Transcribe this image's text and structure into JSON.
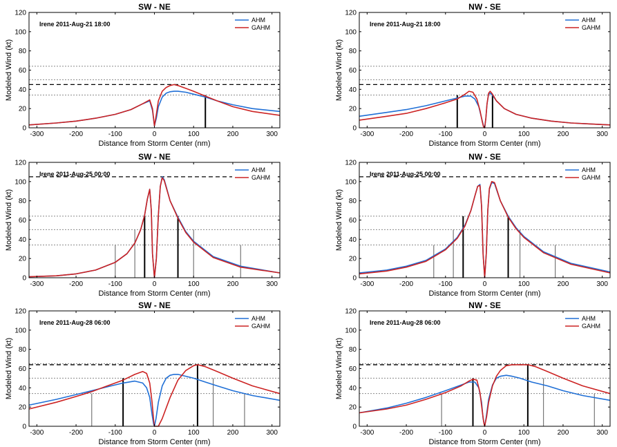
{
  "colors": {
    "AHM": "#1f6fd6",
    "GAHM": "#cc2222"
  },
  "chart_data": [
    {
      "type": "line",
      "title": "SW - NE",
      "annotation": "Irene  2011-Aug-21 18:00",
      "xlabel": "Distance from Storm Center (nm)",
      "ylabel": "Modeled Wind (kt)",
      "xlim": [
        -320,
        320
      ],
      "ylim": [
        0,
        120
      ],
      "xticks": [
        "-300",
        "-200",
        "-100",
        "0",
        "100",
        "200",
        "300"
      ],
      "yticks": [
        "0",
        "20",
        "40",
        "60",
        "80",
        "100",
        "120"
      ],
      "legend": {
        "position": "top-right",
        "entries": [
          "AHM",
          "GAHM"
        ]
      },
      "threshold_lines": {
        "dashed": [
          45
        ],
        "dotted": [
          34,
          50,
          64
        ]
      },
      "radii_markers": [
        {
          "x": 130,
          "height": 34,
          "weight": "bold"
        }
      ],
      "series": [
        {
          "name": "AHM",
          "x": [
            -320,
            -250,
            -200,
            -150,
            -100,
            -60,
            -30,
            -12,
            -5,
            0,
            5,
            10,
            20,
            30,
            40,
            50,
            60,
            80,
            100,
            130,
            160,
            200,
            250,
            320
          ],
          "y": [
            3,
            5,
            7,
            10,
            14,
            19,
            25,
            28,
            18,
            2,
            10,
            22,
            32,
            36,
            37.5,
            38,
            38,
            37,
            35,
            32,
            28,
            24,
            20,
            17
          ]
        },
        {
          "name": "GAHM",
          "x": [
            -320,
            -250,
            -200,
            -150,
            -100,
            -60,
            -30,
            -12,
            -5,
            0,
            5,
            10,
            20,
            30,
            40,
            50,
            60,
            80,
            100,
            130,
            160,
            200,
            250,
            320
          ],
          "y": [
            3,
            5,
            7,
            10,
            14,
            19,
            25,
            29,
            20,
            2,
            14,
            28,
            38,
            42,
            44,
            45,
            44,
            41,
            38,
            33,
            28,
            22,
            17,
            13
          ]
        }
      ]
    },
    {
      "type": "line",
      "title": "NW - SE",
      "annotation": "Irene  2011-Aug-21 18:00",
      "xlabel": "Distance from Storm Center (nm)",
      "ylabel": "Modeled Wind (kt)",
      "xlim": [
        -320,
        320
      ],
      "ylim": [
        0,
        120
      ],
      "xticks": [
        "-300",
        "-200",
        "-100",
        "0",
        "100",
        "200",
        "300"
      ],
      "yticks": [
        "0",
        "20",
        "40",
        "60",
        "80",
        "100",
        "120"
      ],
      "legend": {
        "position": "top-right",
        "entries": [
          "AHM",
          "GAHM"
        ]
      },
      "threshold_lines": {
        "dashed": [
          45
        ],
        "dotted": [
          34,
          50,
          64
        ]
      },
      "radii_markers": [
        {
          "x": -70,
          "height": 34,
          "weight": "bold"
        },
        {
          "x": 20,
          "height": 34,
          "weight": "bold"
        }
      ],
      "series": [
        {
          "name": "AHM",
          "x": [
            -320,
            -250,
            -200,
            -150,
            -100,
            -70,
            -50,
            -35,
            -25,
            -15,
            -8,
            -3,
            0,
            3,
            6,
            10,
            14,
            20,
            30,
            50,
            80,
            120,
            170,
            220,
            270,
            320
          ],
          "y": [
            12,
            16,
            19,
            23,
            28,
            31,
            33,
            33,
            30,
            22,
            10,
            2,
            0,
            10,
            25,
            35,
            36,
            34,
            28,
            20,
            14,
            10,
            7,
            5,
            4,
            3
          ]
        },
        {
          "name": "GAHM",
          "x": [
            -320,
            -250,
            -200,
            -150,
            -100,
            -70,
            -50,
            -40,
            -30,
            -20,
            -12,
            -6,
            -3,
            0,
            3,
            6,
            10,
            14,
            20,
            30,
            50,
            80,
            120,
            170,
            220,
            270,
            320
          ],
          "y": [
            8,
            12,
            15,
            20,
            26,
            30,
            35,
            38,
            37,
            30,
            18,
            6,
            1,
            0,
            10,
            25,
            36,
            38,
            35,
            28,
            20,
            14,
            10,
            7,
            5,
            4,
            3
          ]
        }
      ]
    },
    {
      "type": "line",
      "title": "SW - NE",
      "annotation": "Irene  2011-Aug-25 00:00",
      "xlabel": "Distance from Storm Center (nm)",
      "ylabel": "Modeled Wind (kt)",
      "xlim": [
        -320,
        320
      ],
      "ylim": [
        0,
        120
      ],
      "xticks": [
        "-300",
        "-200",
        "-100",
        "0",
        "100",
        "200",
        "300"
      ],
      "yticks": [
        "0",
        "20",
        "40",
        "60",
        "80",
        "100",
        "120"
      ],
      "legend": {
        "position": "top-right",
        "entries": [
          "AHM",
          "GAHM"
        ]
      },
      "threshold_lines": {
        "dashed": [
          105
        ],
        "dotted": [
          34,
          50,
          64
        ]
      },
      "radii_markers": [
        {
          "x": -100,
          "height": 34,
          "weight": "thin"
        },
        {
          "x": -50,
          "height": 50,
          "weight": "thin"
        },
        {
          "x": -25,
          "height": 64,
          "weight": "bold"
        },
        {
          "x": 60,
          "height": 64,
          "weight": "bold"
        },
        {
          "x": 100,
          "height": 50,
          "weight": "thin"
        },
        {
          "x": 220,
          "height": 34,
          "weight": "thin"
        }
      ],
      "series": [
        {
          "name": "AHM",
          "x": [
            -320,
            -250,
            -200,
            -150,
            -100,
            -70,
            -50,
            -35,
            -25,
            -18,
            -12,
            -8,
            -5,
            0,
            5,
            10,
            15,
            20,
            25,
            30,
            40,
            60,
            80,
            100,
            150,
            220,
            320
          ],
          "y": [
            1,
            2,
            4,
            8,
            16,
            25,
            36,
            50,
            65,
            82,
            92,
            70,
            25,
            0,
            20,
            65,
            95,
            105,
            102,
            95,
            80,
            63,
            48,
            38,
            22,
            12,
            5
          ]
        },
        {
          "name": "GAHM",
          "x": [
            -320,
            -250,
            -200,
            -150,
            -100,
            -70,
            -50,
            -35,
            -25,
            -18,
            -12,
            -8,
            -5,
            0,
            5,
            10,
            15,
            20,
            25,
            30,
            40,
            60,
            80,
            100,
            150,
            220,
            320
          ],
          "y": [
            1,
            2,
            4,
            8,
            16,
            25,
            36,
            50,
            65,
            82,
            92,
            70,
            25,
            0,
            20,
            65,
            95,
            104,
            101,
            94,
            80,
            62,
            47,
            37,
            21,
            11,
            5
          ]
        }
      ]
    },
    {
      "type": "line",
      "title": "NW - SE",
      "annotation": "Irene  2011-Aug-25 00:00",
      "xlabel": "Distance from Storm Center (nm)",
      "ylabel": "Modeled Wind (kt)",
      "xlim": [
        -320,
        320
      ],
      "ylim": [
        0,
        120
      ],
      "xticks": [
        "-300",
        "-200",
        "-100",
        "0",
        "100",
        "200",
        "300"
      ],
      "yticks": [
        "0",
        "20",
        "40",
        "60",
        "80",
        "100",
        "120"
      ],
      "legend": {
        "position": "top-right",
        "entries": [
          "AHM",
          "GAHM"
        ]
      },
      "threshold_lines": {
        "dashed": [
          105
        ],
        "dotted": [
          34,
          50,
          64
        ]
      },
      "radii_markers": [
        {
          "x": -130,
          "height": 34,
          "weight": "thin"
        },
        {
          "x": -80,
          "height": 50,
          "weight": "thin"
        },
        {
          "x": -55,
          "height": 64,
          "weight": "bold"
        },
        {
          "x": 60,
          "height": 64,
          "weight": "bold"
        },
        {
          "x": 90,
          "height": 50,
          "weight": "thin"
        },
        {
          "x": 180,
          "height": 34,
          "weight": "thin"
        }
      ],
      "series": [
        {
          "name": "AHM",
          "x": [
            -320,
            -250,
            -200,
            -150,
            -100,
            -70,
            -50,
            -35,
            -25,
            -18,
            -12,
            -8,
            -4,
            0,
            4,
            8,
            12,
            18,
            25,
            30,
            40,
            60,
            80,
            100,
            150,
            220,
            320
          ],
          "y": [
            5,
            8,
            12,
            18,
            30,
            42,
            55,
            70,
            85,
            95,
            97,
            75,
            25,
            0,
            25,
            70,
            92,
            99,
            98,
            92,
            80,
            64,
            52,
            43,
            27,
            15,
            6
          ]
        },
        {
          "name": "GAHM",
          "x": [
            -320,
            -250,
            -200,
            -150,
            -100,
            -70,
            -50,
            -35,
            -25,
            -18,
            -12,
            -8,
            -4,
            0,
            4,
            8,
            12,
            18,
            25,
            30,
            40,
            60,
            80,
            100,
            150,
            220,
            320
          ],
          "y": [
            4,
            7,
            11,
            17,
            29,
            41,
            54,
            70,
            85,
            95,
            96,
            74,
            24,
            0,
            25,
            70,
            93,
            100,
            99,
            93,
            80,
            63,
            51,
            42,
            26,
            14,
            5
          ]
        }
      ]
    },
    {
      "type": "line",
      "title": "SW - NE",
      "annotation": "Irene  2011-Aug-28 06:00",
      "xlabel": "Distance from Storm Center (nm)",
      "ylabel": "Modeled Wind (kt)",
      "xlim": [
        -320,
        320
      ],
      "ylim": [
        0,
        120
      ],
      "xticks": [
        "-300",
        "-200",
        "-100",
        "0",
        "100",
        "200",
        "300"
      ],
      "yticks": [
        "0",
        "20",
        "40",
        "60",
        "80",
        "100",
        "120"
      ],
      "legend": {
        "position": "top-right",
        "entries": [
          "AHM",
          "GAHM"
        ]
      },
      "threshold_lines": {
        "dashed": [
          64
        ],
        "dotted": [
          34,
          50,
          65
        ]
      },
      "radii_markers": [
        {
          "x": -160,
          "height": 34,
          "weight": "thin"
        },
        {
          "x": -80,
          "height": 50,
          "weight": "bold"
        },
        {
          "x": 110,
          "height": 64,
          "weight": "bold"
        },
        {
          "x": 150,
          "height": 50,
          "weight": "thin"
        },
        {
          "x": 230,
          "height": 34,
          "weight": "thin"
        }
      ],
      "series": [
        {
          "name": "AHM",
          "x": [
            -320,
            -250,
            -200,
            -160,
            -120,
            -80,
            -50,
            -30,
            -20,
            -12,
            -6,
            -2,
            0,
            4,
            10,
            20,
            30,
            40,
            50,
            60,
            80,
            100,
            130,
            160,
            200,
            250,
            320
          ],
          "y": [
            22,
            28,
            33,
            37,
            41,
            45,
            47,
            45,
            40,
            30,
            12,
            2,
            0,
            8,
            25,
            42,
            50,
            53,
            54,
            54,
            52,
            50,
            46,
            42,
            37,
            32,
            27
          ]
        },
        {
          "name": "GAHM",
          "x": [
            -320,
            -250,
            -200,
            -160,
            -120,
            -80,
            -50,
            -30,
            -20,
            -12,
            -6,
            -2,
            0,
            4,
            10,
            20,
            40,
            60,
            80,
            100,
            110,
            130,
            160,
            200,
            250,
            320
          ],
          "y": [
            18,
            25,
            31,
            36,
            42,
            48,
            54,
            57,
            55,
            45,
            25,
            6,
            0,
            0,
            0,
            8,
            30,
            48,
            58,
            63,
            64,
            62,
            57,
            50,
            42,
            34
          ]
        }
      ]
    },
    {
      "type": "line",
      "title": "NW - SE",
      "annotation": "Irene  2011-Aug-28 06:00",
      "xlabel": "Distance from Storm Center (nm)",
      "ylabel": "Modeled Wind (kt)",
      "xlim": [
        -320,
        320
      ],
      "ylim": [
        0,
        120
      ],
      "xticks": [
        "-300",
        "-200",
        "-100",
        "0",
        "100",
        "200",
        "300"
      ],
      "yticks": [
        "0",
        "20",
        "40",
        "60",
        "80",
        "100",
        "120"
      ],
      "legend": {
        "position": "top-right",
        "entries": [
          "AHM",
          "GAHM"
        ]
      },
      "threshold_lines": {
        "dashed": [
          64
        ],
        "dotted": [
          34,
          50,
          65
        ]
      },
      "radii_markers": [
        {
          "x": -110,
          "height": 34,
          "weight": "thin"
        },
        {
          "x": -30,
          "height": 50,
          "weight": "bold"
        },
        {
          "x": 110,
          "height": 64,
          "weight": "bold"
        },
        {
          "x": 150,
          "height": 50,
          "weight": "thin"
        },
        {
          "x": 280,
          "height": 34,
          "weight": "thin"
        }
      ],
      "series": [
        {
          "name": "AHM",
          "x": [
            -320,
            -250,
            -200,
            -150,
            -100,
            -60,
            -40,
            -25,
            -15,
            -8,
            -4,
            0,
            4,
            10,
            20,
            30,
            40,
            55,
            70,
            90,
            120,
            160,
            200,
            250,
            320
          ],
          "y": [
            14,
            19,
            24,
            30,
            37,
            43,
            46,
            46,
            40,
            25,
            8,
            0,
            10,
            28,
            43,
            50,
            52,
            53,
            52,
            50,
            46,
            42,
            37,
            32,
            27
          ]
        },
        {
          "name": "GAHM",
          "x": [
            -320,
            -250,
            -200,
            -150,
            -100,
            -60,
            -40,
            -30,
            -20,
            -12,
            -6,
            -2,
            0,
            5,
            10,
            20,
            30,
            40,
            55,
            70,
            90,
            110,
            130,
            160,
            200,
            250,
            320
          ],
          "y": [
            14,
            18,
            22,
            28,
            35,
            42,
            47,
            49,
            48,
            35,
            15,
            3,
            0,
            10,
            25,
            42,
            52,
            58,
            63,
            64,
            64,
            64,
            62,
            57,
            50,
            42,
            34
          ]
        }
      ]
    }
  ]
}
